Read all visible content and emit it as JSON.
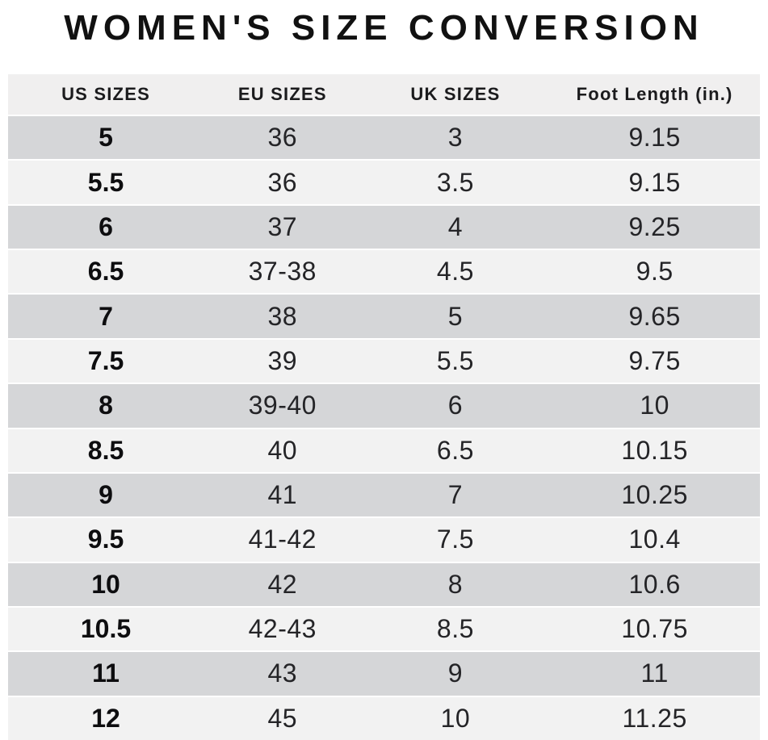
{
  "title": "WOMEN'S SIZE CONVERSION",
  "colors": {
    "background": "#ffffff",
    "header_bg": "#f0efef",
    "row_dark": "#d5d6d8",
    "row_light": "#f2f2f2",
    "separator": "#ffffff",
    "title_text": "#111111",
    "cell_text": "#242427"
  },
  "chart_data": {
    "type": "table",
    "title": "WOMEN'S SIZE CONVERSION",
    "columns": [
      "US SIZES",
      "EU SIZES",
      "UK SIZES",
      "Foot Length (in.)"
    ],
    "rows": [
      [
        "5",
        "36",
        "3",
        "9.15"
      ],
      [
        "5.5",
        "36",
        "3.5",
        "9.15"
      ],
      [
        "6",
        "37",
        "4",
        "9.25"
      ],
      [
        "6.5",
        "37-38",
        "4.5",
        "9.5"
      ],
      [
        "7",
        "38",
        "5",
        "9.65"
      ],
      [
        "7.5",
        "39",
        "5.5",
        "9.75"
      ],
      [
        "8",
        "39-40",
        "6",
        "10"
      ],
      [
        "8.5",
        "40",
        "6.5",
        "10.15"
      ],
      [
        "9",
        "41",
        "7",
        "10.25"
      ],
      [
        "9.5",
        "41-42",
        "7.5",
        "10.4"
      ],
      [
        "10",
        "42",
        "8",
        "10.6"
      ],
      [
        "10.5",
        "42-43",
        "8.5",
        "10.75"
      ],
      [
        "11",
        "43",
        "9",
        "11"
      ],
      [
        "12",
        "45",
        "10",
        "11.25"
      ]
    ],
    "layout": {
      "row_striping": "first data row dark gray, alternating with light gray",
      "grid": "thin white horizontal separators between rows",
      "alignment": "all cells center-aligned, US sizes column bold"
    }
  }
}
